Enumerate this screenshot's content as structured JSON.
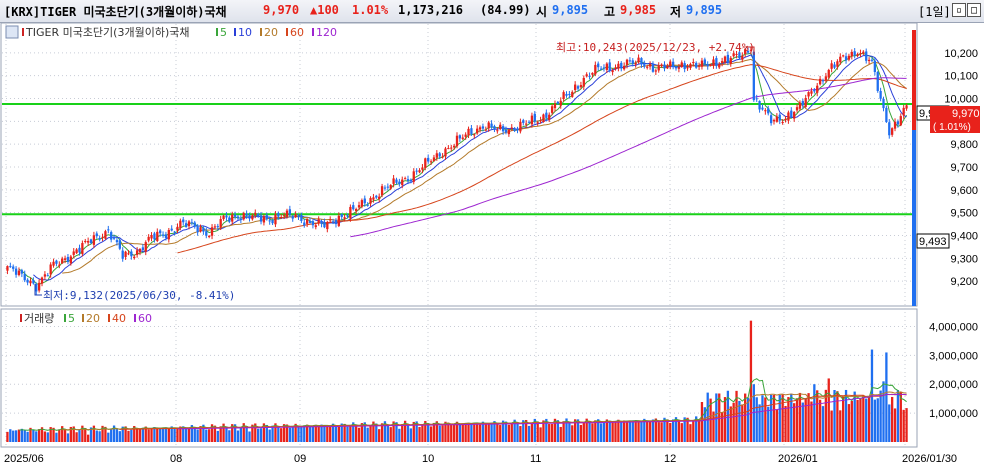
{
  "header": {
    "ticker": "[KRX]TIGER 미국초단기(3개월이하)국채",
    "price": "9,970",
    "change": "▲100",
    "change_pct": "1.01%",
    "volume": "1,173,216",
    "volume_ratio": "(84.99)",
    "open_label": "시",
    "open": "9,895",
    "high_label": "고",
    "high": "9,985",
    "low_label": "저",
    "low": "9,895",
    "period": "[1일]"
  },
  "colors": {
    "up": "#e8221b",
    "down": "#1f6ff0",
    "ma5": "#3aa53a",
    "ma10": "#2a3fd8",
    "ma20": "#b37a2a",
    "ma60": "#d6451c",
    "ma120": "#9d25d0",
    "hline": "#19d119"
  },
  "price_panel": {
    "legend": [
      {
        "label": "TIGER 미국초단기(3개월이하)국채",
        "color": "#cc2222"
      },
      {
        "label": "5",
        "color": "#3aa53a"
      },
      {
        "label": "10",
        "color": "#2a3fd8"
      },
      {
        "label": "20",
        "color": "#b37a2a"
      },
      {
        "label": "60",
        "color": "#d6451c"
      },
      {
        "label": "120",
        "color": "#9d25d0"
      }
    ],
    "high_note": "최고:10,243(2025/12/23, +2.74%)",
    "low_note": "최저:9,132(2025/06/30, -8.41%)",
    "y_ticks": [
      "10,200",
      "10,100",
      "10,000",
      "9,900",
      "9,800",
      "9,700",
      "9,600",
      "9,500",
      "9,400",
      "9,300",
      "9,200"
    ],
    "hline_labels": [
      "9,976",
      "9,493"
    ],
    "current_label": "9,970",
    "current_pct": "( 1.01%)"
  },
  "volume_panel": {
    "legend": [
      {
        "label": "거래량",
        "color": "#cc2222"
      },
      {
        "label": "5",
        "color": "#3aa53a"
      },
      {
        "label": "20",
        "color": "#b37a2a"
      },
      {
        "label": "40",
        "color": "#d6451c"
      },
      {
        "label": "60",
        "color": "#9d25d0"
      }
    ],
    "y_ticks": [
      "4,000,000",
      "3,000,000",
      "2,000,000",
      "1,000,000"
    ]
  },
  "x_labels": [
    "2025/06",
    "08",
    "09",
    "10",
    "11",
    "12",
    "2026/01",
    "2026/01/30"
  ],
  "chart_data": {
    "type": "candlestick",
    "ylim": [
      9100,
      10300
    ],
    "vol_ylim": [
      0,
      4500000
    ],
    "hlines": [
      9976,
      9493
    ],
    "anchors": [
      [
        0,
        9260
      ],
      [
        5,
        9220
      ],
      [
        8,
        9200
      ],
      [
        10,
        9180
      ],
      [
        13,
        9220
      ],
      [
        16,
        9270
      ],
      [
        20,
        9300
      ],
      [
        25,
        9340
      ],
      [
        30,
        9390
      ],
      [
        35,
        9420
      ],
      [
        40,
        9310
      ],
      [
        45,
        9330
      ],
      [
        50,
        9390
      ],
      [
        55,
        9410
      ],
      [
        60,
        9450
      ],
      [
        65,
        9440
      ],
      [
        70,
        9410
      ],
      [
        75,
        9470
      ],
      [
        80,
        9490
      ],
      [
        85,
        9480
      ],
      [
        90,
        9470
      ],
      [
        95,
        9490
      ],
      [
        100,
        9480
      ],
      [
        105,
        9460
      ],
      [
        110,
        9440
      ],
      [
        115,
        9480
      ],
      [
        120,
        9510
      ],
      [
        125,
        9550
      ],
      [
        130,
        9600
      ],
      [
        135,
        9630
      ],
      [
        140,
        9660
      ],
      [
        145,
        9710
      ],
      [
        150,
        9760
      ],
      [
        155,
        9800
      ],
      [
        160,
        9850
      ],
      [
        165,
        9880
      ],
      [
        170,
        9860
      ],
      [
        175,
        9870
      ],
      [
        180,
        9890
      ],
      [
        185,
        9910
      ],
      [
        190,
        9970
      ],
      [
        195,
        10020
      ],
      [
        200,
        10090
      ],
      [
        205,
        10130
      ],
      [
        210,
        10140
      ],
      [
        215,
        10150
      ],
      [
        220,
        10160
      ],
      [
        225,
        10130
      ],
      [
        230,
        10140
      ],
      [
        235,
        10150
      ],
      [
        240,
        10140
      ],
      [
        245,
        10160
      ],
      [
        250,
        10170
      ],
      [
        255,
        10190
      ],
      [
        258,
        10230
      ],
      [
        259,
        10000
      ],
      [
        262,
        9950
      ],
      [
        265,
        9900
      ],
      [
        270,
        9920
      ],
      [
        275,
        9960
      ],
      [
        280,
        10050
      ],
      [
        285,
        10120
      ],
      [
        290,
        10180
      ],
      [
        295,
        10210
      ],
      [
        300,
        10150
      ],
      [
        303,
        10000
      ],
      [
        306,
        9860
      ],
      [
        309,
        9895
      ],
      [
        312,
        9970
      ]
    ],
    "spikes": {
      "258": 4200000,
      "259": 2000000,
      "300": 3200000,
      "305": 3100000,
      "304": 2100000,
      "306": 1300000,
      "280": 2000000,
      "285": 2200000,
      "287": 1800000
    }
  }
}
